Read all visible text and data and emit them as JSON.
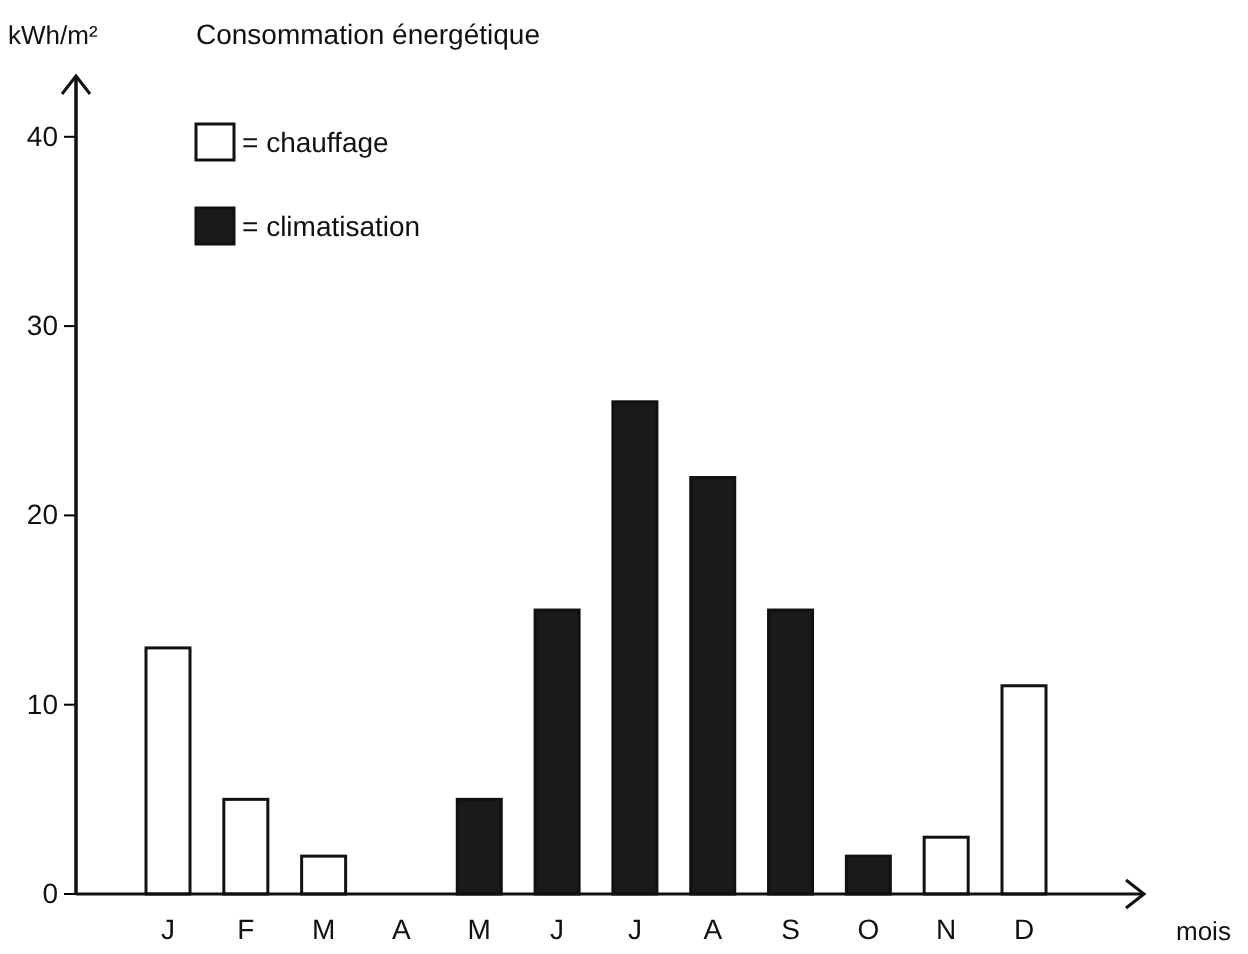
{
  "chart_data": {
    "type": "bar",
    "title": "Consommation énergétique",
    "ylabel": "kWh/m²",
    "xlabel": "mois",
    "categories": [
      "J",
      "F",
      "M",
      "A",
      "M",
      "J",
      "J",
      "A",
      "S",
      "O",
      "N",
      "D"
    ],
    "series": [
      {
        "name": "= chauffage",
        "color": "#ffffff",
        "values": [
          13,
          5,
          2,
          null,
          null,
          null,
          null,
          null,
          null,
          null,
          3,
          11
        ]
      },
      {
        "name": "= climatisation",
        "color": "#1a1a1a",
        "values": [
          null,
          null,
          null,
          null,
          5,
          15,
          26,
          22,
          15,
          2,
          null,
          null
        ]
      }
    ],
    "ylim": [
      0,
      43
    ],
    "yticks": [
      0,
      10,
      20,
      30,
      40
    ],
    "grid": false,
    "legend": "top left"
  }
}
